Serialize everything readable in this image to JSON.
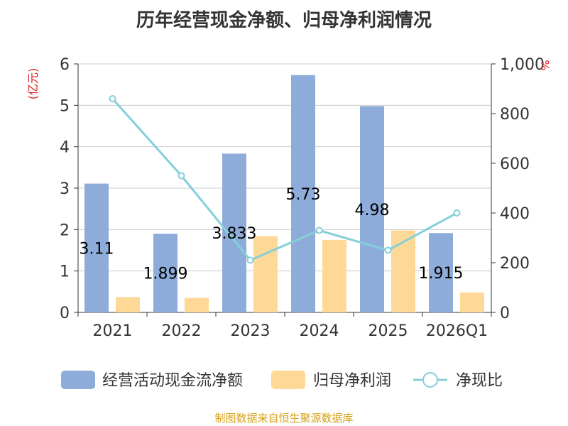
{
  "title": "历年经营现金净额、归母净利润情况",
  "footer": "制图数据来自恒生聚源数据库",
  "chart_data": {
    "type": "bar",
    "title": "历年经营现金净额、归母净利润情况",
    "categories": [
      "2021",
      "2022",
      "2023",
      "2024",
      "2025",
      "2026Q1"
    ],
    "y_left": {
      "unit": "(亿元)",
      "range": [
        0,
        6
      ],
      "ticks": [
        "0",
        "1",
        "2",
        "3",
        "4",
        "5",
        "6"
      ]
    },
    "y_right": {
      "unit": "%",
      "range": [
        0,
        1000
      ],
      "ticks": [
        "0",
        "200",
        "400",
        "600",
        "800",
        "1,000"
      ]
    },
    "series": [
      {
        "name": "经营活动现金流净额",
        "type": "bar",
        "axis": "left",
        "values": [
          3.11,
          1.899,
          3.833,
          5.73,
          4.98,
          1.915
        ],
        "labels": [
          "3.11",
          "1.899",
          "3.833",
          "5.73",
          "4.98",
          "1.915"
        ],
        "color": "#8eacd9"
      },
      {
        "name": "归母净利润",
        "type": "bar",
        "axis": "left",
        "values": [
          0.37,
          0.35,
          1.84,
          1.75,
          1.98,
          0.48
        ],
        "color": "#fed896"
      },
      {
        "name": "净现比",
        "type": "line",
        "axis": "right",
        "values": [
          860,
          550,
          210,
          330,
          250,
          400
        ],
        "color": "#84cfd8"
      }
    ],
    "grid": true,
    "legend_position": "bottom"
  }
}
